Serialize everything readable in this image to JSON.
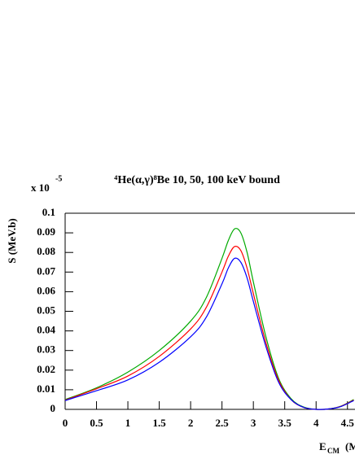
{
  "chart_data": {
    "type": "line",
    "title": "⁴He(α,γ)⁸Be 10, 50, 100 keV bound",
    "y_multiplier": "x 10",
    "y_multiplier_exponent": "-5",
    "y_label": "S (MeV.b)",
    "x_label": "E",
    "x_label_sub": "CM",
    "x_label_tail": "(M",
    "x": [
      0,
      0.5,
      1,
      1.5,
      2,
      2.25,
      2.5,
      2.6,
      2.7,
      2.8,
      2.9,
      3,
      3.2,
      3.4,
      3.6,
      3.8,
      4,
      4.2,
      4.4,
      4.6
    ],
    "series": [
      {
        "color": "#00aa00",
        "values": [
          0.005,
          0.011,
          0.019,
          0.03,
          0.045,
          0.057,
          0.077,
          0.086,
          0.092,
          0.09,
          0.08,
          0.065,
          0.037,
          0.016,
          0.0055,
          0.0012,
          0.0,
          0.0002,
          0.0017,
          0.005
        ]
      },
      {
        "color": "#ff0000",
        "values": [
          0.0047,
          0.0105,
          0.017,
          0.027,
          0.041,
          0.052,
          0.07,
          0.078,
          0.083,
          0.081,
          0.072,
          0.059,
          0.034,
          0.015,
          0.005,
          0.001,
          0.0,
          0.0002,
          0.0016,
          0.0047
        ]
      },
      {
        "color": "#0000ff",
        "values": [
          0.0045,
          0.0095,
          0.015,
          0.024,
          0.037,
          0.047,
          0.064,
          0.072,
          0.077,
          0.075,
          0.067,
          0.055,
          0.032,
          0.014,
          0.005,
          0.001,
          0.0,
          0.0002,
          0.0015,
          0.0045
        ]
      }
    ],
    "xlim": [
      0,
      4.62
    ],
    "ylim": [
      0,
      0.1
    ],
    "xticks": [
      0,
      0.5,
      1,
      1.5,
      2,
      2.5,
      3,
      3.5,
      4,
      4.5
    ],
    "yticks": [
      0,
      0.01,
      0.02,
      0.03,
      0.04,
      0.05,
      0.06,
      0.07,
      0.08,
      0.09,
      0.1
    ],
    "grid": false
  }
}
